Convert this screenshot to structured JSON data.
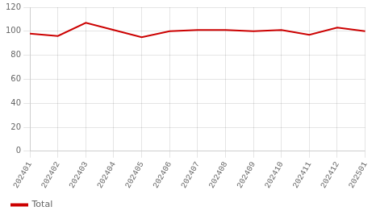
{
  "chart_data": {
    "type": "line",
    "categories": [
      "202401",
      "202402",
      "202403",
      "202404",
      "202405",
      "202406",
      "202407",
      "202408",
      "202409",
      "202410",
      "202411",
      "202412",
      "202501"
    ],
    "series": [
      {
        "name": "Total",
        "color": "#cc0000",
        "values": [
          98,
          96,
          107,
          101,
          95,
          100,
          101,
          101,
          100,
          101,
          97,
          103,
          100
        ]
      }
    ],
    "ylim": [
      0,
      120
    ],
    "yticks": [
      0,
      20,
      40,
      60,
      80,
      100,
      120
    ],
    "grid": true,
    "legend": "bottom"
  }
}
